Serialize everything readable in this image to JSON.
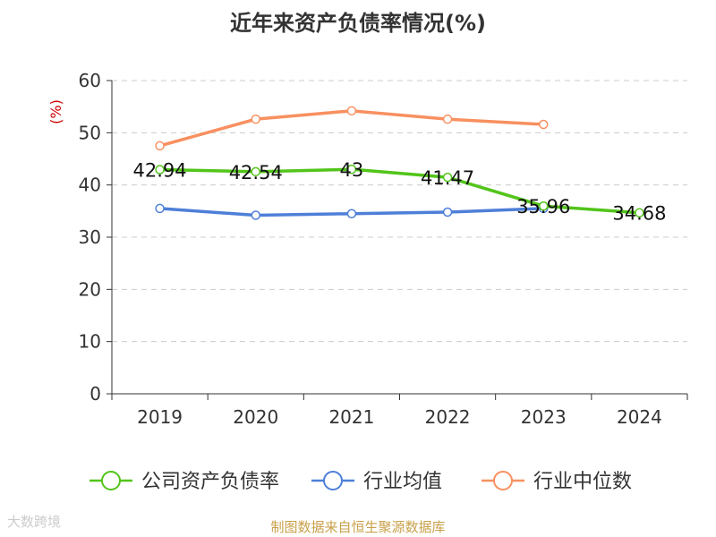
{
  "chart_data": {
    "type": "line",
    "title": "近年来资产负债率情况(%)",
    "ylabel": "(%)",
    "categories": [
      "2019",
      "2020",
      "2021",
      "2022",
      "2023",
      "2024"
    ],
    "ylim": [
      0,
      60
    ],
    "yticks": [
      0,
      10,
      20,
      30,
      40,
      50,
      60
    ],
    "grid": true,
    "legend_position": "bottom",
    "series": [
      {
        "name": "公司资产负债率",
        "color": "#52c41a",
        "values": [
          42.94,
          42.54,
          43,
          41.47,
          35.96,
          34.68
        ],
        "labels": [
          "42.94",
          "42.54",
          "43",
          "41.47",
          "35.96",
          "34.68"
        ]
      },
      {
        "name": "行业均值",
        "color": "#4e7fd8",
        "values": [
          35.5,
          34.2,
          34.5,
          34.8,
          35.5,
          null
        ]
      },
      {
        "name": "行业中位数",
        "color": "#f89060",
        "values": [
          47.5,
          52.6,
          54.2,
          52.6,
          51.6,
          null
        ]
      }
    ]
  },
  "source": "制图数据来自恒生聚源数据库",
  "watermark": "大数跨境"
}
